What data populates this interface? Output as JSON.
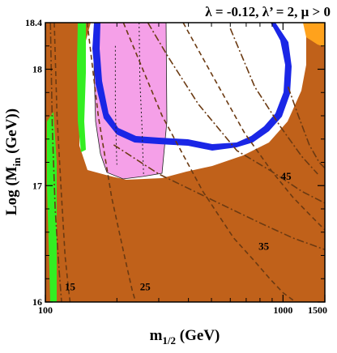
{
  "chart_data": {
    "type": "contour",
    "title": "λ = -0.12, λ’ = 2,  μ > 0",
    "xlabel_main": "m",
    "xlabel_sub": "1/2",
    "xlabel_unit": " (GeV)",
    "ylabel_main": "Log (M",
    "ylabel_sub": "in",
    "ylabel_unit": " (GeV))",
    "x_scale": "log",
    "xlim": [
      100,
      1500
    ],
    "ylim": [
      16,
      18.4
    ],
    "x_ticks": [
      100,
      1000,
      1500
    ],
    "x_tick_labels": [
      "100",
      "1000",
      "1500"
    ],
    "y_ticks": [
      16,
      17,
      18,
      18.4
    ],
    "y_tick_labels": [
      "16",
      "17",
      "18",
      "18.4"
    ],
    "grid": false,
    "colors": {
      "excluded_brown": "#c0611a",
      "lsp_orange": "#ffa21c",
      "green_band": "#33ee22",
      "pink_region": "#f5a0e8",
      "blue_band": "#1a26e6",
      "contour_line": "#6b3a12",
      "white_allowed": "#ffffff"
    },
    "contour_labels": [
      {
        "text": "15",
        "x": 127,
        "y": 16.1
      },
      {
        "text": "25",
        "x": 263,
        "y": 16.1
      },
      {
        "text": "35",
        "x": 830,
        "y": 16.45
      },
      {
        "text": "45",
        "x": 1030,
        "y": 17.05
      }
    ],
    "contours": [
      {
        "name": "15",
        "points": [
          [
            109,
            18.4
          ],
          [
            112,
            17.6
          ],
          [
            117,
            16.9
          ],
          [
            121,
            16.4
          ],
          [
            125,
            16.12
          ],
          [
            127,
            16
          ]
        ]
      },
      {
        "name": "25",
        "points": [
          [
            150,
            18.4
          ],
          [
            167,
            17.6
          ],
          [
            190,
            16.9
          ],
          [
            215,
            16.4
          ],
          [
            232,
            16.1
          ],
          [
            240,
            16
          ]
        ]
      },
      {
        "name": "35",
        "points": [
          [
            213,
            18.4
          ],
          [
            310,
            17.6
          ],
          [
            460,
            16.95
          ],
          [
            620,
            16.55
          ],
          [
            760,
            16.35
          ],
          [
            880,
            16.2
          ],
          [
            1000,
            16.08
          ],
          [
            1130,
            16
          ]
        ]
      },
      {
        "name": "45",
        "points": [
          [
            380,
            18.4
          ],
          [
            520,
            17.9
          ],
          [
            690,
            17.45
          ],
          [
            900,
            17.12
          ],
          [
            1100,
            16.9
          ],
          [
            1340,
            16.72
          ],
          [
            1500,
            16.62
          ]
        ]
      },
      {
        "name": "dotdash-1",
        "points": [
          [
            105,
            18.4
          ],
          [
            107,
            17.5
          ],
          [
            110,
            16.8
          ],
          [
            114,
            16.3
          ],
          [
            117,
            16
          ]
        ]
      },
      {
        "name": "dotdash-2",
        "points": [
          [
            194,
            17.35
          ],
          [
            300,
            17.1
          ],
          [
            500,
            16.88
          ],
          [
            800,
            16.68
          ],
          [
            1100,
            16.55
          ],
          [
            1500,
            16.45
          ]
        ]
      },
      {
        "name": "dotdash-3",
        "points": [
          [
            270,
            18.4
          ],
          [
            330,
            18.1
          ],
          [
            440,
            17.7
          ],
          [
            640,
            17.3
          ],
          [
            900,
            17.12
          ],
          [
            1200,
            16.95
          ],
          [
            1500,
            16.85
          ]
        ]
      },
      {
        "name": "dotdash-4",
        "points": [
          [
            1050,
            17.85
          ],
          [
            1160,
            17.6
          ],
          [
            1290,
            17.35
          ],
          [
            1420,
            17.2
          ],
          [
            1500,
            17.15
          ]
        ]
      },
      {
        "name": "dotdash-5",
        "points": [
          [
            600,
            18.35
          ],
          [
            760,
            17.85
          ],
          [
            980,
            17.5
          ],
          [
            1200,
            17.25
          ],
          [
            1400,
            17.1
          ]
        ]
      }
    ],
    "dotted_lines": [
      {
        "name": "dotted-1",
        "points": [
          [
            197,
            18.2
          ],
          [
            197,
            17.7
          ],
          [
            199,
            17.3
          ],
          [
            200,
            17.18
          ]
        ]
      },
      {
        "name": "dotted-2",
        "points": [
          [
            248,
            18.4
          ],
          [
            250,
            17.9
          ],
          [
            255,
            17.5
          ],
          [
            258,
            17.2
          ],
          [
            259,
            17.1
          ]
        ]
      }
    ]
  }
}
